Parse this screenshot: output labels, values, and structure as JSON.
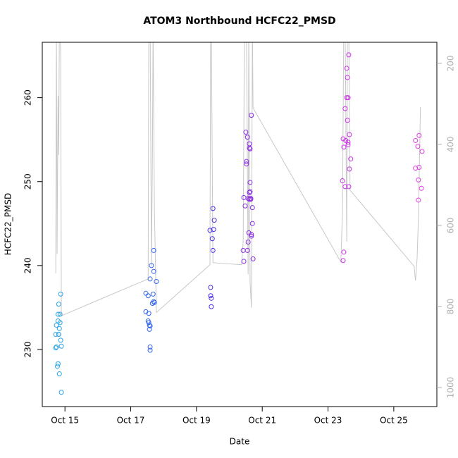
{
  "chart_data": {
    "type": "scatter",
    "title": "ATOM3 Northbound HCFC22_PMSD",
    "x_label": "Date",
    "y_label": "HCFC22_PMSD",
    "xlim": [
      14.31,
      26.31
    ],
    "xticks": [
      {
        "value": 15,
        "label": "Oct 15"
      },
      {
        "value": 17,
        "label": "Oct 17"
      },
      {
        "value": 19,
        "label": "Oct 19"
      },
      {
        "value": 21,
        "label": "Oct 21"
      },
      {
        "value": 23,
        "label": "Oct 23"
      },
      {
        "value": 25,
        "label": "Oct 25"
      }
    ],
    "ylim": [
      223.2,
      266.6
    ],
    "yticks": [
      230,
      240,
      250,
      260
    ],
    "y2lim": [
      1047,
      148
    ],
    "y2ticks": [
      200,
      400,
      600,
      800,
      1000
    ],
    "series": [
      {
        "color": "#2aa3e8",
        "x": [
          14.79,
          14.81,
          14.85,
          14.74,
          14.79,
          14.83,
          14.81,
          14.72,
          14.81,
          14.87,
          14.74,
          14.72,
          14.89,
          14.79,
          14.77,
          14.83,
          14.89,
          14.85,
          14.87
        ],
        "values": [
          234.2,
          235.4,
          234.2,
          232.9,
          233.4,
          232.5,
          231.8,
          231.8,
          231.8,
          231.1,
          230.3,
          230.2,
          230.4,
          228.3,
          228.0,
          227.1,
          224.9,
          233.2,
          236.6
        ]
      },
      {
        "color": "#3366ee",
        "x": [
          17.46,
          17.53,
          17.46,
          17.55,
          17.53,
          17.55,
          17.57,
          17.59,
          17.57,
          17.59,
          17.59,
          17.59,
          17.63,
          17.68,
          17.7,
          17.72,
          17.66,
          17.7,
          17.7,
          17.78
        ],
        "values": [
          236.7,
          236.4,
          234.5,
          234.3,
          233.4,
          233.2,
          232.9,
          232.8,
          232.4,
          230.3,
          229.9,
          238.4,
          240.0,
          236.6,
          235.7,
          235.6,
          235.5,
          239.3,
          241.8,
          238.1
        ]
      },
      {
        "color": "#4b2ee8",
        "x": [
          19.41,
          19.5,
          19.52,
          19.54,
          19.48,
          19.5,
          19.43,
          19.43,
          19.45,
          19.45
        ],
        "values": [
          244.2,
          246.8,
          244.3,
          245.4,
          243.2,
          241.8,
          237.4,
          236.4,
          236.1,
          235.1
        ]
      },
      {
        "color": "#8a2be2",
        "x": [
          20.42,
          20.44,
          20.44,
          20.48,
          20.5,
          20.52,
          20.52,
          20.55,
          20.55,
          20.57,
          20.57,
          20.59,
          20.61,
          20.61,
          20.63,
          20.63,
          20.63,
          20.65,
          20.65,
          20.67,
          20.67,
          20.67,
          20.7,
          20.7,
          20.72,
          20.61,
          20.61
        ],
        "values": [
          241.8,
          240.5,
          248.1,
          247.1,
          255.9,
          252.4,
          252.1,
          255.3,
          241.8,
          248.0,
          242.8,
          243.9,
          254.5,
          254.0,
          253.9,
          249.9,
          248.8,
          248.0,
          247.9,
          257.9,
          243.7,
          243.5,
          246.9,
          245.0,
          240.8,
          247.9,
          248.7
        ]
      },
      {
        "color": "#cc33e6",
        "x": [
          23.46,
          23.48,
          23.44,
          23.52,
          23.46,
          23.48,
          23.52,
          23.54,
          23.57,
          23.57,
          23.59,
          23.59,
          23.61,
          23.61,
          23.61,
          23.63,
          23.63,
          23.65,
          23.65,
          23.69
        ],
        "values": [
          240.6,
          241.6,
          250.1,
          249.4,
          255.1,
          254.1,
          258.7,
          254.9,
          263.5,
          260.0,
          262.4,
          257.3,
          260.0,
          254.4,
          254.7,
          265.1,
          249.4,
          255.6,
          251.5,
          252.7
        ]
      },
      {
        "color": "#e040e0",
        "x": [
          25.66,
          25.77,
          25.73,
          25.86,
          25.66,
          25.77,
          25.75,
          25.84,
          25.75
        ],
        "values": [
          254.9,
          255.5,
          254.2,
          253.6,
          251.6,
          251.7,
          250.2,
          249.2,
          247.8
        ]
      },
      {
        "type": "line",
        "axis": "y2",
        "color": "#c8c8c8",
        "x": [
          14.72,
          14.74,
          14.76,
          14.79,
          14.81,
          14.83,
          14.85,
          14.87,
          14.89,
          17.53,
          17.55,
          17.59,
          17.63,
          17.66,
          17.68,
          17.72,
          17.78,
          19.41,
          19.43,
          19.45,
          19.5,
          20.37,
          20.42,
          20.46,
          20.52,
          20.57,
          20.59,
          20.63,
          20.67,
          20.7,
          20.72,
          23.39,
          23.44,
          23.48,
          23.52,
          23.57,
          23.59,
          23.63,
          23.67,
          25.62,
          25.66,
          25.71,
          25.75,
          25.81
        ],
        "values": [
          718,
          100,
          670,
          280,
          426,
          100,
          100,
          180,
          823,
          732,
          100,
          100,
          700,
          420,
          100,
          560,
          815,
          697,
          100,
          100,
          692,
          697,
          640,
          100,
          100,
          720,
          100,
          740,
          803,
          100,
          310,
          690,
          565,
          100,
          100,
          640,
          100,
          100,
          513,
          701,
          736,
          680,
          580,
          308
        ]
      }
    ]
  }
}
